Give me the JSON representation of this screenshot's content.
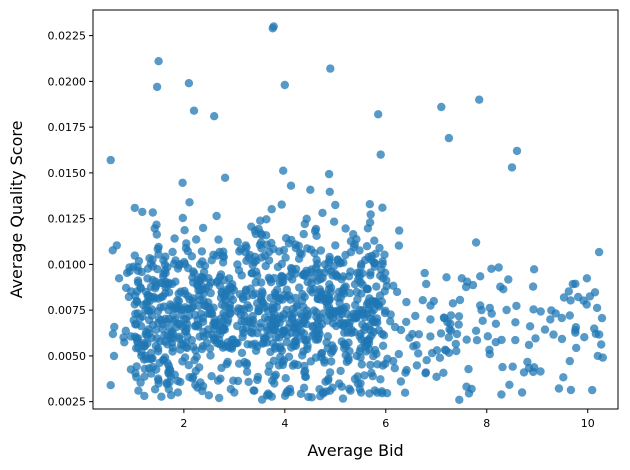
{
  "chart_data": {
    "type": "scatter",
    "title": "",
    "xlabel": "Average Bid",
    "ylabel": "Average Quality Score",
    "xlim": [
      0.2,
      10.6
    ],
    "ylim": [
      0.0021,
      0.0239
    ],
    "xticks": [
      2,
      4,
      6,
      8,
      10
    ],
    "yticks": [
      0.0025,
      0.005,
      0.0075,
      0.01,
      0.0125,
      0.015,
      0.0175,
      0.02,
      0.0225
    ],
    "xtick_labels": [
      "2",
      "4",
      "6",
      "8",
      "10"
    ],
    "ytick_labels": [
      "0.0025",
      "0.0050",
      "0.0075",
      "0.0100",
      "0.0125",
      "0.0150",
      "0.0175",
      "0.0200",
      "0.0225"
    ],
    "grid": false,
    "marker_color": "#1f77b4",
    "marker_alpha": 0.75,
    "approx_point_count": 1200,
    "outliers": {
      "x": [
        0.55,
        1.5,
        1.47,
        2.1,
        2.2,
        2.6,
        3.78,
        3.76,
        4.0,
        4.9,
        5.85,
        5.9,
        7.1,
        7.25,
        7.85,
        8.6,
        8.5
      ],
      "y": [
        0.0157,
        0.0211,
        0.0197,
        0.0199,
        0.0184,
        0.0181,
        0.023,
        0.0229,
        0.0198,
        0.0207,
        0.0182,
        0.016,
        0.0186,
        0.0169,
        0.019,
        0.0162,
        0.0153
      ]
    },
    "lower_edge_points": {
      "x": [
        0.55,
        1.1,
        2.7,
        3.0,
        4.1,
        4.7,
        5.3,
        5.5,
        6.3,
        7.7,
        8.7,
        10.2
      ],
      "y": [
        0.0034,
        0.0031,
        0.0027,
        0.003,
        0.0032,
        0.0028,
        0.0031,
        0.0035,
        0.0036,
        0.0032,
        0.003,
        0.005
      ]
    },
    "distribution": {
      "description": "dense band of points",
      "x_range": [
        0.5,
        10.3
      ],
      "y_core_range": [
        0.0035,
        0.0125
      ],
      "density_peak_x": [
        1,
        6
      ],
      "y_center": 0.0075
    }
  }
}
